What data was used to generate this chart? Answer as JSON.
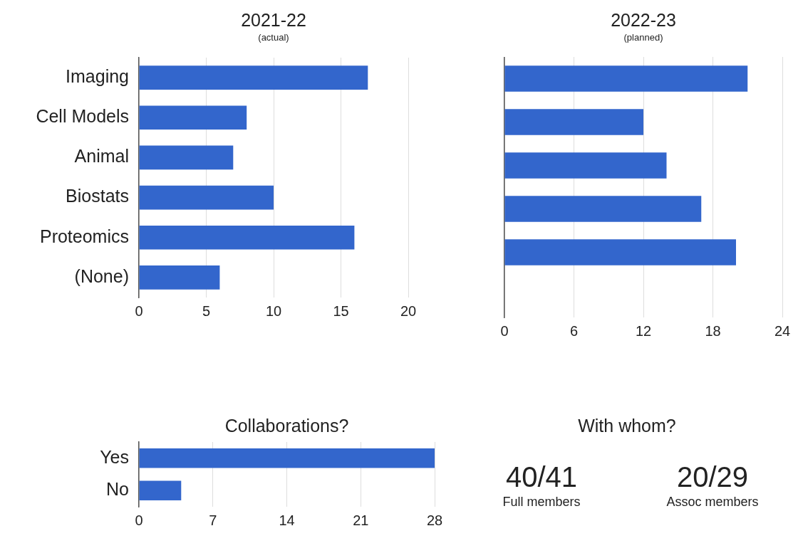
{
  "chart_data": [
    {
      "type": "bar",
      "title": "2021-22",
      "subtitle": "(actual)",
      "orientation": "horizontal",
      "categories": [
        "Imaging",
        "Cell Models",
        "Animal",
        "Biostats",
        "Proteomics",
        "(None)"
      ],
      "values": [
        17,
        8,
        7,
        10,
        16,
        6
      ],
      "color": "#3366cc",
      "xlim": [
        0,
        20
      ],
      "xticks": [
        0,
        5,
        10,
        15,
        20
      ],
      "grid": "x"
    },
    {
      "type": "bar",
      "title": "2022-23",
      "subtitle": "(planned)",
      "orientation": "horizontal",
      "categories": [
        null,
        null,
        null,
        null,
        null,
        null
      ],
      "values": [
        21,
        12,
        14,
        17,
        20,
        0
      ],
      "color": "#3366cc",
      "xlim": [
        0,
        24
      ],
      "xticks": [
        0,
        6,
        12,
        18,
        24
      ],
      "grid": "x",
      "tick_labels": "x"
    },
    {
      "type": "bar",
      "title": "Collaborations?",
      "orientation": "horizontal",
      "categories": [
        "Yes",
        "No"
      ],
      "values": [
        28,
        4
      ],
      "color": "#3366cc",
      "xlim": [
        0,
        28
      ],
      "xticks": [
        0,
        7,
        14,
        21,
        28
      ],
      "grid": "x"
    },
    {
      "type": "other",
      "title": "With whom?",
      "annotations": [
        "40/41",
        "Full members",
        "20/29",
        "Assoc members"
      ]
    }
  ]
}
